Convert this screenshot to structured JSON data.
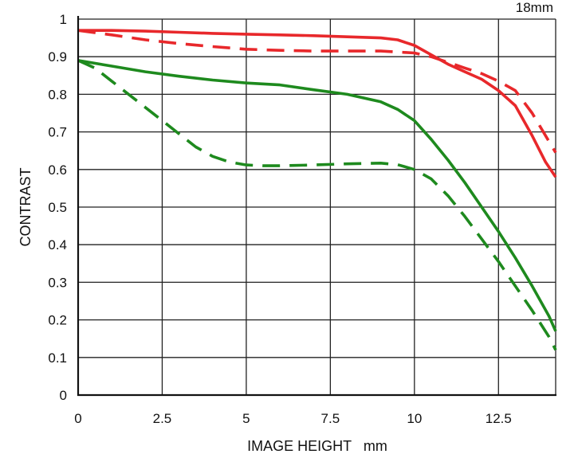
{
  "chart_data": {
    "type": "line",
    "xlabel": "IMAGE HEIGHT   mm",
    "ylabel": "CONTRAST",
    "corner_label": "18mm",
    "xlim": [
      0,
      14.2
    ],
    "ylim": [
      0,
      1
    ],
    "x_ticks": [
      0,
      2.5,
      5,
      7.5,
      10,
      12.5
    ],
    "x_tick_labels": [
      "0",
      "2.5",
      "5",
      "7.5",
      "10",
      "12.5"
    ],
    "y_ticks": [
      0,
      0.1,
      0.2,
      0.3,
      0.4,
      0.5,
      0.6,
      0.7,
      0.8,
      0.9,
      1
    ],
    "y_tick_labels": [
      "0",
      "0.1",
      "0.2",
      "0.3",
      "0.4",
      "0.5",
      "0.6",
      "0.7",
      "0.8",
      "0.9",
      "1"
    ],
    "grid": true,
    "series": [
      {
        "color": "#e8282b",
        "dash": "solid",
        "x": [
          0,
          1,
          2,
          3,
          4,
          5,
          6,
          7,
          8,
          9,
          9.5,
          10,
          10.5,
          11,
          11.5,
          12,
          12.5,
          13,
          13.5,
          13.9,
          14.2
        ],
        "y": [
          0.97,
          0.97,
          0.968,
          0.965,
          0.962,
          0.96,
          0.958,
          0.956,
          0.953,
          0.95,
          0.945,
          0.93,
          0.905,
          0.88,
          0.86,
          0.84,
          0.81,
          0.77,
          0.69,
          0.62,
          0.58
        ]
      },
      {
        "color": "#e8282b",
        "dash": "dashed",
        "x": [
          0,
          1,
          2,
          3,
          4,
          5,
          6,
          7,
          8,
          9,
          10,
          10.5,
          11,
          11.5,
          12,
          12.5,
          13,
          13.5,
          13.9,
          14.2
        ],
        "y": [
          0.97,
          0.958,
          0.945,
          0.935,
          0.927,
          0.92,
          0.917,
          0.915,
          0.915,
          0.915,
          0.91,
          0.9,
          0.885,
          0.87,
          0.855,
          0.835,
          0.81,
          0.75,
          0.69,
          0.645
        ]
      },
      {
        "color": "#1e8a1e",
        "dash": "solid",
        "x": [
          0,
          1,
          2,
          3,
          4,
          5,
          6,
          7,
          8,
          9,
          9.5,
          10,
          10.5,
          11,
          11.5,
          12,
          12.5,
          13,
          13.5,
          14,
          14.2
        ],
        "y": [
          0.89,
          0.875,
          0.86,
          0.848,
          0.838,
          0.83,
          0.825,
          0.812,
          0.8,
          0.78,
          0.76,
          0.73,
          0.68,
          0.625,
          0.565,
          0.5,
          0.435,
          0.365,
          0.29,
          0.21,
          0.17
        ]
      },
      {
        "color": "#1e8a1e",
        "dash": "dashed",
        "x": [
          0,
          0.5,
          1,
          1.5,
          2,
          2.5,
          3,
          3.5,
          4,
          4.5,
          5,
          5.5,
          6,
          7,
          8,
          9,
          9.5,
          10,
          10.5,
          11,
          11.5,
          12,
          12.5,
          13,
          13.5,
          14,
          14.2
        ],
        "y": [
          0.89,
          0.87,
          0.835,
          0.8,
          0.765,
          0.73,
          0.695,
          0.66,
          0.635,
          0.62,
          0.612,
          0.61,
          0.61,
          0.612,
          0.615,
          0.617,
          0.613,
          0.6,
          0.575,
          0.53,
          0.475,
          0.415,
          0.355,
          0.29,
          0.225,
          0.155,
          0.12
        ]
      }
    ]
  }
}
